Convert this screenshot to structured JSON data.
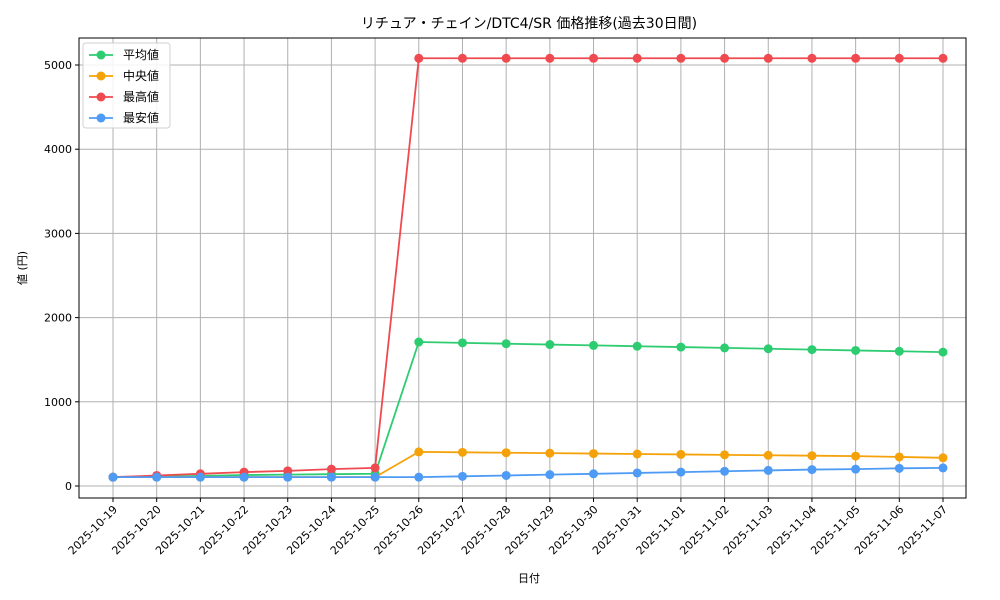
{
  "chart_data": {
    "type": "line",
    "title": "リチュア・チェイン/DTC4/SR 価格推移(過去30日間)",
    "xlabel": "日付",
    "ylabel": "値 (円)",
    "ylim": [
      -150,
      5320
    ],
    "yticks": [
      0,
      1000,
      2000,
      3000,
      4000,
      5000
    ],
    "grid": true,
    "legend_position": "upper left",
    "categories": [
      "2025-10-19",
      "2025-10-20",
      "2025-10-21",
      "2025-10-22",
      "2025-10-23",
      "2025-10-24",
      "2025-10-25",
      "2025-10-26",
      "2025-10-27",
      "2025-10-28",
      "2025-10-29",
      "2025-10-30",
      "2025-10-31",
      "2025-11-01",
      "2025-11-02",
      "2025-11-03",
      "2025-11-04",
      "2025-11-05",
      "2025-11-06",
      "2025-11-07"
    ],
    "series": [
      {
        "name": "平均値",
        "color": "#2ecc71",
        "values": [
          105,
          110,
          120,
          130,
          135,
          140,
          145,
          1710,
          1700,
          1690,
          1680,
          1670,
          1660,
          1650,
          1640,
          1630,
          1620,
          1610,
          1600,
          1590
        ]
      },
      {
        "name": "中央値",
        "color": "#f5a20a",
        "values": [
          105,
          105,
          105,
          105,
          105,
          105,
          105,
          405,
          400,
          395,
          390,
          385,
          380,
          375,
          370,
          365,
          360,
          355,
          345,
          335
        ]
      },
      {
        "name": "最高値",
        "color": "#ef4a4f",
        "values": [
          105,
          125,
          145,
          165,
          180,
          200,
          215,
          5080,
          5080,
          5080,
          5080,
          5080,
          5080,
          5080,
          5080,
          5080,
          5080,
          5080,
          5080,
          5080
        ]
      },
      {
        "name": "最安値",
        "color": "#4e9bf5",
        "values": [
          105,
          105,
          105,
          105,
          105,
          105,
          105,
          105,
          115,
          125,
          135,
          145,
          155,
          165,
          175,
          185,
          195,
          200,
          210,
          215
        ]
      }
    ]
  }
}
